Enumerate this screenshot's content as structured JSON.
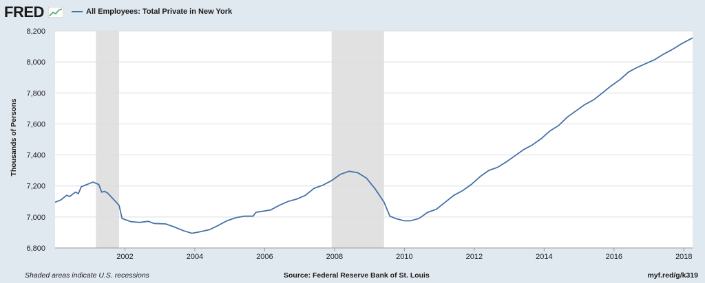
{
  "header": {
    "logo_text": "FRED",
    "logo_icon": "chart-trend-icon",
    "legend_label": "All Employees: Total Private in New York"
  },
  "footer": {
    "note": "Shaded areas indicate U.S. recessions",
    "source": "Source: Federal Reserve Bank of St. Louis",
    "link": "myf.red/g/k319"
  },
  "colors": {
    "line": "#4572a7",
    "recession": "#e1e1e1",
    "plot_bg": "#ffffff",
    "page_bg": "#e1e9f0",
    "grid": "#dddddd"
  },
  "chart_data": {
    "type": "line",
    "ylabel": "Thousands of Persons",
    "ylim": [
      6800,
      8200
    ],
    "yticks": [
      6800,
      7000,
      7200,
      7400,
      7600,
      7800,
      8000,
      8200
    ],
    "ytick_labels": [
      "6,800",
      "7,000",
      "7,200",
      "7,400",
      "7,600",
      "7,800",
      "8,000",
      "8,200"
    ],
    "xlim": [
      "2000-01",
      "2018-04"
    ],
    "xticks": [
      "2002-01",
      "2004-01",
      "2006-01",
      "2008-01",
      "2010-01",
      "2012-01",
      "2014-01",
      "2016-01",
      "2018-01"
    ],
    "xtick_labels": [
      "2002",
      "2004",
      "2006",
      "2008",
      "2010",
      "2012",
      "2014",
      "2016",
      "2018"
    ],
    "grid": true,
    "recessions": [
      {
        "start": "2001-03",
        "end": "2001-11"
      },
      {
        "start": "2007-12",
        "end": "2009-06"
      }
    ],
    "series": [
      {
        "points": [
          [
            "2000-01",
            7095
          ],
          [
            "2000-03",
            7110
          ],
          [
            "2000-05",
            7140
          ],
          [
            "2000-06",
            7132
          ],
          [
            "2000-08",
            7160
          ],
          [
            "2000-09",
            7150
          ],
          [
            "2000-10",
            7195
          ],
          [
            "2000-12",
            7210
          ],
          [
            "2001-02",
            7225
          ],
          [
            "2001-04",
            7210
          ],
          [
            "2001-05",
            7160
          ],
          [
            "2001-06",
            7165
          ],
          [
            "2001-07",
            7155
          ],
          [
            "2001-09",
            7115
          ],
          [
            "2001-11",
            7075
          ],
          [
            "2001-12",
            6990
          ],
          [
            "2002-03",
            6970
          ],
          [
            "2002-06",
            6965
          ],
          [
            "2002-09",
            6972
          ],
          [
            "2002-11",
            6958
          ],
          [
            "2003-03",
            6955
          ],
          [
            "2003-06",
            6935
          ],
          [
            "2003-09",
            6912
          ],
          [
            "2003-12",
            6895
          ],
          [
            "2004-03",
            6905
          ],
          [
            "2004-06",
            6918
          ],
          [
            "2004-09",
            6945
          ],
          [
            "2004-12",
            6975
          ],
          [
            "2005-03",
            6995
          ],
          [
            "2005-06",
            7005
          ],
          [
            "2005-09",
            7005
          ],
          [
            "2005-10",
            7030
          ],
          [
            "2006-03",
            7045
          ],
          [
            "2006-06",
            7075
          ],
          [
            "2006-09",
            7100
          ],
          [
            "2006-12",
            7115
          ],
          [
            "2007-03",
            7140
          ],
          [
            "2007-06",
            7185
          ],
          [
            "2007-09",
            7205
          ],
          [
            "2007-12",
            7235
          ],
          [
            "2008-03",
            7275
          ],
          [
            "2008-06",
            7295
          ],
          [
            "2008-09",
            7285
          ],
          [
            "2008-12",
            7250
          ],
          [
            "2009-03",
            7180
          ],
          [
            "2009-06",
            7095
          ],
          [
            "2009-08",
            7005
          ],
          [
            "2009-10",
            6990
          ],
          [
            "2010-01",
            6975
          ],
          [
            "2010-03",
            6975
          ],
          [
            "2010-06",
            6990
          ],
          [
            "2010-09",
            7030
          ],
          [
            "2010-12",
            7050
          ],
          [
            "2011-03",
            7095
          ],
          [
            "2011-06",
            7140
          ],
          [
            "2011-09",
            7170
          ],
          [
            "2011-12",
            7210
          ],
          [
            "2012-03",
            7260
          ],
          [
            "2012-06",
            7300
          ],
          [
            "2012-09",
            7320
          ],
          [
            "2012-12",
            7355
          ],
          [
            "2013-03",
            7395
          ],
          [
            "2013-06",
            7435
          ],
          [
            "2013-09",
            7465
          ],
          [
            "2013-12",
            7505
          ],
          [
            "2014-03",
            7555
          ],
          [
            "2014-06",
            7590
          ],
          [
            "2014-09",
            7645
          ],
          [
            "2014-12",
            7685
          ],
          [
            "2015-03",
            7725
          ],
          [
            "2015-06",
            7755
          ],
          [
            "2015-09",
            7800
          ],
          [
            "2015-12",
            7845
          ],
          [
            "2016-03",
            7885
          ],
          [
            "2016-06",
            7935
          ],
          [
            "2016-09",
            7965
          ],
          [
            "2016-12",
            7990
          ],
          [
            "2017-03",
            8015
          ],
          [
            "2017-06",
            8050
          ],
          [
            "2017-09",
            8080
          ],
          [
            "2017-12",
            8115
          ],
          [
            "2018-02",
            8135
          ],
          [
            "2018-04",
            8155
          ]
        ]
      }
    ]
  }
}
